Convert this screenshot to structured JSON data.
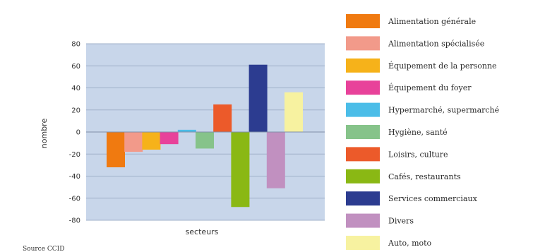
{
  "chart_data": {
    "type": "bar",
    "xlabel": "secteurs",
    "ylabel": "nombre",
    "ylim": [
      -80,
      80
    ],
    "yticks": [
      -80,
      -60,
      -40,
      -20,
      0,
      20,
      40,
      60,
      80
    ],
    "grid": true,
    "plot_background": "#c8d6ea",
    "legend_position": "right",
    "source": "Source CCID",
    "series": [
      {
        "name": "Alimentation générale",
        "value": -32,
        "color": "#f07a10"
      },
      {
        "name": "Alimentation spécialisée",
        "value": -18,
        "color": "#f29a8a"
      },
      {
        "name": "Équipement de la personne",
        "value": -16,
        "color": "#f6b21a"
      },
      {
        "name": "Équipement du foyer",
        "value": -11,
        "color": "#e8429a"
      },
      {
        "name": "Hypermarché, supermarché",
        "value": 2,
        "color": "#4bbde8"
      },
      {
        "name": "Hygiène, santé",
        "value": -15,
        "color": "#86c38a"
      },
      {
        "name": "Loisirs, culture",
        "value": 25,
        "color": "#ec5a2a"
      },
      {
        "name": "Cafés, restaurants",
        "value": -68,
        "color": "#8ab814"
      },
      {
        "name": "Services commerciaux",
        "value": 61,
        "color": "#2c3c90"
      },
      {
        "name": "Divers",
        "value": -51,
        "color": "#c190c0"
      },
      {
        "name": "Auto, moto",
        "value": 36,
        "color": "#f7f2a0"
      }
    ]
  }
}
